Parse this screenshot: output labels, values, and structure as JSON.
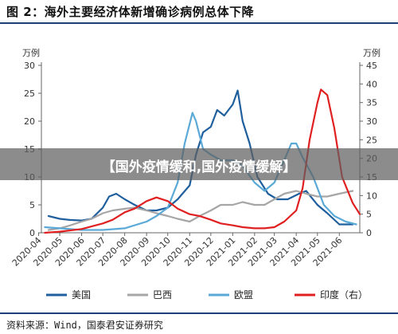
{
  "title": "图 2：海外主要经济体新增确诊病例总体下降",
  "source": "资料来源：Wind，国泰君安证券研究",
  "banner": "【国外疫情缓和,国外疫情缓解】",
  "chart_data": {
    "type": "line",
    "title": "海外主要经济体新增确诊病例总体下降",
    "xlabel": "",
    "ylabel": "万例",
    "y2label": "万例",
    "ylim": [
      0,
      30
    ],
    "y2lim": [
      0,
      45
    ],
    "yticks": [
      0,
      5,
      10,
      15,
      20,
      25,
      30
    ],
    "y2ticks": [
      0,
      5,
      10,
      15,
      20,
      25,
      30,
      35,
      40,
      45
    ],
    "xlim": [
      "2020-04-05",
      "2021-06-30"
    ],
    "xticks": [
      "2020-04",
      "2020-05",
      "2020-06",
      "2020-07",
      "2020-08",
      "2020-09",
      "2020-10",
      "2020-11",
      "2020-12",
      "2021-01",
      "2021-02",
      "2021-03",
      "2021-04",
      "2021-05",
      "2021-06"
    ],
    "grid": false,
    "legend_position": "bottom",
    "series": [
      {
        "name": "美国",
        "color": "#1f5f9e",
        "axis": "left",
        "x": [
          "2020-04-15",
          "2020-05-01",
          "2020-05-15",
          "2020-06-01",
          "2020-06-15",
          "2020-07-01",
          "2020-07-10",
          "2020-07-20",
          "2020-08-01",
          "2020-08-15",
          "2020-09-01",
          "2020-09-15",
          "2020-10-01",
          "2020-10-15",
          "2020-11-01",
          "2020-11-10",
          "2020-11-20",
          "2020-12-01",
          "2020-12-10",
          "2020-12-20",
          "2021-01-01",
          "2021-01-08",
          "2021-01-15",
          "2021-01-25",
          "2021-02-05",
          "2021-02-20",
          "2021-03-05",
          "2021-03-20",
          "2021-04-05",
          "2021-04-15",
          "2021-05-01",
          "2021-05-15",
          "2021-06-01",
          "2021-06-20"
        ],
        "y": [
          3.0,
          2.5,
          2.3,
          2.2,
          2.5,
          4.5,
          6.5,
          7.0,
          6.0,
          5.0,
          4.0,
          4.0,
          4.5,
          6.0,
          8.5,
          14.0,
          18.0,
          19.0,
          22.0,
          21.0,
          23.0,
          25.5,
          20.0,
          16.0,
          10.0,
          7.0,
          6.0,
          6.0,
          7.0,
          7.5,
          5.0,
          3.5,
          1.5,
          1.5
        ]
      },
      {
        "name": "巴西",
        "color": "#a6a6a6",
        "axis": "left",
        "x": [
          "2020-04-15",
          "2020-05-01",
          "2020-05-15",
          "2020-06-01",
          "2020-06-15",
          "2020-07-01",
          "2020-07-15",
          "2020-08-01",
          "2020-08-15",
          "2020-09-01",
          "2020-09-15",
          "2020-10-01",
          "2020-10-15",
          "2020-11-01",
          "2020-11-15",
          "2020-12-01",
          "2020-12-15",
          "2021-01-01",
          "2021-01-15",
          "2021-02-01",
          "2021-02-15",
          "2021-03-01",
          "2021-03-15",
          "2021-04-01",
          "2021-04-15",
          "2021-05-01",
          "2021-05-15",
          "2021-06-01",
          "2021-06-20"
        ],
        "y": [
          0.5,
          0.8,
          1.3,
          2.0,
          2.5,
          3.5,
          4.0,
          4.3,
          4.5,
          4.0,
          3.5,
          3.0,
          2.5,
          2.0,
          3.0,
          4.0,
          5.0,
          5.0,
          5.5,
          5.0,
          5.0,
          6.0,
          7.0,
          7.5,
          7.0,
          6.5,
          6.5,
          7.0,
          7.5
        ]
      },
      {
        "name": "欧盟",
        "color": "#5aa9d6",
        "axis": "left",
        "x": [
          "2020-04-10",
          "2020-05-01",
          "2020-06-01",
          "2020-07-01",
          "2020-08-01",
          "2020-09-01",
          "2020-09-15",
          "2020-10-01",
          "2020-10-15",
          "2020-10-25",
          "2020-11-05",
          "2020-11-10",
          "2020-11-20",
          "2020-12-01",
          "2020-12-15",
          "2021-01-01",
          "2021-01-15",
          "2021-02-01",
          "2021-02-15",
          "2021-03-01",
          "2021-03-15",
          "2021-03-25",
          "2021-04-01",
          "2021-04-10",
          "2021-04-25",
          "2021-05-10",
          "2021-05-25",
          "2021-06-10",
          "2021-06-25"
        ],
        "y": [
          1.0,
          0.8,
          0.5,
          0.5,
          0.8,
          2.0,
          3.0,
          4.5,
          9.0,
          16.0,
          21.5,
          20.0,
          15.0,
          14.0,
          13.0,
          13.0,
          12.0,
          9.0,
          7.5,
          9.0,
          13.0,
          16.0,
          16.0,
          13.5,
          10.0,
          5.0,
          3.0,
          2.0,
          1.5
        ]
      },
      {
        "name": "印度（右）",
        "color": "#e02020",
        "axis": "right",
        "x": [
          "2020-04-10",
          "2020-05-01",
          "2020-06-01",
          "2020-07-01",
          "2020-07-15",
          "2020-08-01",
          "2020-08-15",
          "2020-09-01",
          "2020-09-15",
          "2020-10-01",
          "2020-10-15",
          "2020-11-01",
          "2020-11-15",
          "2020-12-01",
          "2020-12-15",
          "2021-01-01",
          "2021-01-15",
          "2021-02-01",
          "2021-02-15",
          "2021-03-01",
          "2021-03-15",
          "2021-04-01",
          "2021-04-10",
          "2021-04-20",
          "2021-05-01",
          "2021-05-06",
          "2021-05-15",
          "2021-05-25",
          "2021-06-05",
          "2021-06-20",
          "2021-06-30"
        ],
        "y": [
          0.0,
          0.3,
          1.0,
          2.5,
          3.5,
          5.5,
          6.5,
          8.5,
          9.5,
          8.5,
          6.5,
          5.0,
          4.5,
          3.5,
          2.5,
          2.0,
          1.5,
          1.2,
          1.2,
          1.5,
          3.0,
          6.0,
          12.0,
          25.0,
          35.0,
          38.5,
          37.0,
          28.0,
          15.0,
          8.0,
          5.0
        ]
      }
    ]
  }
}
